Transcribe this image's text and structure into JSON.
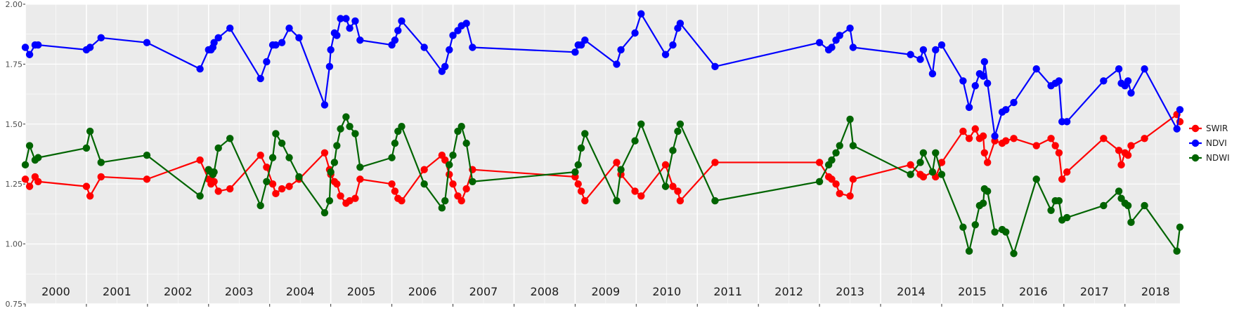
{
  "chart_data": {
    "type": "line",
    "title": "",
    "xlabel": "",
    "ylabel": "",
    "x_range": [
      2000.0,
      2018.9
    ],
    "ylim": [
      0.75,
      2.0
    ],
    "y_ticks": [
      "0.75",
      "1.00",
      "1.25",
      "1.50",
      "1.75",
      "2.00"
    ],
    "year_labels": [
      "2000",
      "2001",
      "2002",
      "2003",
      "2004",
      "2005",
      "2006",
      "2007",
      "2008",
      "2009",
      "2010",
      "2011",
      "2012",
      "2013",
      "2014",
      "2015",
      "2016",
      "2017",
      "2018"
    ],
    "legend": {
      "position": "right",
      "items": [
        {
          "name": "SWIR",
          "color": "#ff0000"
        },
        {
          "name": "NDVI",
          "color": "#0000ff"
        },
        {
          "name": "NDWI",
          "color": "#006400"
        }
      ]
    },
    "colors": {
      "panel": "#ebebeb",
      "grid": "#ffffff",
      "axis_text": "#4d4d4d"
    },
    "series": [
      {
        "name": "SWIR",
        "color": "#ff0000",
        "points": [
          [
            2000.0,
            1.27
          ],
          [
            2000.07,
            1.24
          ],
          [
            2000.16,
            1.28
          ],
          [
            2000.21,
            1.26
          ],
          [
            2001.0,
            1.24
          ],
          [
            2001.06,
            1.2
          ],
          [
            2001.24,
            1.28
          ],
          [
            2001.99,
            1.27
          ],
          [
            2002.86,
            1.35
          ],
          [
            2003.0,
            1.27
          ],
          [
            2003.04,
            1.25
          ],
          [
            2003.07,
            1.29
          ],
          [
            2003.09,
            1.26
          ],
          [
            2003.16,
            1.22
          ],
          [
            2003.35,
            1.23
          ],
          [
            2003.85,
            1.37
          ],
          [
            2003.95,
            1.32
          ],
          [
            2004.05,
            1.25
          ],
          [
            2004.1,
            1.21
          ],
          [
            2004.2,
            1.23
          ],
          [
            2004.32,
            1.24
          ],
          [
            2004.48,
            1.27
          ],
          [
            2004.9,
            1.38
          ],
          [
            2004.98,
            1.31
          ],
          [
            2005.0,
            1.29
          ],
          [
            2005.06,
            1.26
          ],
          [
            2005.1,
            1.25
          ],
          [
            2005.16,
            1.2
          ],
          [
            2005.25,
            1.17
          ],
          [
            2005.31,
            1.18
          ],
          [
            2005.4,
            1.19
          ],
          [
            2005.48,
            1.27
          ],
          [
            2006.0,
            1.25
          ],
          [
            2006.05,
            1.22
          ],
          [
            2006.1,
            1.19
          ],
          [
            2006.16,
            1.18
          ],
          [
            2006.53,
            1.31
          ],
          [
            2006.82,
            1.37
          ],
          [
            2006.87,
            1.35
          ],
          [
            2006.94,
            1.29
          ],
          [
            2007.0,
            1.25
          ],
          [
            2007.08,
            1.2
          ],
          [
            2007.14,
            1.18
          ],
          [
            2007.22,
            1.23
          ],
          [
            2007.32,
            1.31
          ],
          [
            2009.0,
            1.28
          ],
          [
            2009.05,
            1.25
          ],
          [
            2009.1,
            1.22
          ],
          [
            2009.16,
            1.18
          ],
          [
            2009.68,
            1.34
          ],
          [
            2009.75,
            1.29
          ],
          [
            2009.98,
            1.22
          ],
          [
            2010.08,
            1.2
          ],
          [
            2010.48,
            1.33
          ],
          [
            2010.6,
            1.24
          ],
          [
            2010.68,
            1.22
          ],
          [
            2010.72,
            1.18
          ],
          [
            2011.29,
            1.34
          ],
          [
            2013.0,
            1.34
          ],
          [
            2013.15,
            1.28
          ],
          [
            2013.2,
            1.27
          ],
          [
            2013.27,
            1.25
          ],
          [
            2013.33,
            1.21
          ],
          [
            2013.5,
            1.2
          ],
          [
            2013.55,
            1.27
          ],
          [
            2014.49,
            1.33
          ],
          [
            2014.65,
            1.29
          ],
          [
            2014.7,
            1.28
          ],
          [
            2014.85,
            1.3
          ],
          [
            2014.9,
            1.28
          ],
          [
            2015.0,
            1.34
          ],
          [
            2015.35,
            1.47
          ],
          [
            2015.45,
            1.44
          ],
          [
            2015.55,
            1.48
          ],
          [
            2015.62,
            1.44
          ],
          [
            2015.68,
            1.45
          ],
          [
            2015.7,
            1.38
          ],
          [
            2015.75,
            1.34
          ],
          [
            2015.87,
            1.43
          ],
          [
            2015.99,
            1.42
          ],
          [
            2016.05,
            1.43
          ],
          [
            2016.18,
            1.44
          ],
          [
            2016.55,
            1.41
          ],
          [
            2016.79,
            1.44
          ],
          [
            2016.86,
            1.41
          ],
          [
            2016.92,
            1.38
          ],
          [
            2016.97,
            1.27
          ],
          [
            2017.05,
            1.3
          ],
          [
            2017.65,
            1.44
          ],
          [
            2017.9,
            1.39
          ],
          [
            2017.94,
            1.33
          ],
          [
            2018.0,
            1.38
          ],
          [
            2018.05,
            1.37
          ],
          [
            2018.1,
            1.41
          ],
          [
            2018.32,
            1.44
          ],
          [
            2018.85,
            1.54
          ],
          [
            2018.9,
            1.51
          ]
        ]
      },
      {
        "name": "NDVI",
        "color": "#0000ff",
        "points": [
          [
            2000.0,
            1.82
          ],
          [
            2000.07,
            1.79
          ],
          [
            2000.16,
            1.83
          ],
          [
            2000.21,
            1.83
          ],
          [
            2001.0,
            1.81
          ],
          [
            2001.06,
            1.82
          ],
          [
            2001.24,
            1.86
          ],
          [
            2001.99,
            1.84
          ],
          [
            2002.86,
            1.73
          ],
          [
            2003.0,
            1.81
          ],
          [
            2003.04,
            1.81
          ],
          [
            2003.07,
            1.82
          ],
          [
            2003.09,
            1.84
          ],
          [
            2003.16,
            1.86
          ],
          [
            2003.35,
            1.9
          ],
          [
            2003.85,
            1.69
          ],
          [
            2003.95,
            1.76
          ],
          [
            2004.05,
            1.83
          ],
          [
            2004.1,
            1.83
          ],
          [
            2004.2,
            1.84
          ],
          [
            2004.32,
            1.9
          ],
          [
            2004.48,
            1.86
          ],
          [
            2004.9,
            1.58
          ],
          [
            2004.98,
            1.74
          ],
          [
            2005.0,
            1.81
          ],
          [
            2005.06,
            1.88
          ],
          [
            2005.1,
            1.87
          ],
          [
            2005.16,
            1.94
          ],
          [
            2005.25,
            1.94
          ],
          [
            2005.31,
            1.9
          ],
          [
            2005.4,
            1.93
          ],
          [
            2005.48,
            1.85
          ],
          [
            2006.0,
            1.83
          ],
          [
            2006.05,
            1.85
          ],
          [
            2006.1,
            1.89
          ],
          [
            2006.16,
            1.93
          ],
          [
            2006.53,
            1.82
          ],
          [
            2006.82,
            1.72
          ],
          [
            2006.87,
            1.74
          ],
          [
            2006.94,
            1.81
          ],
          [
            2007.0,
            1.87
          ],
          [
            2007.08,
            1.89
          ],
          [
            2007.14,
            1.91
          ],
          [
            2007.22,
            1.92
          ],
          [
            2007.32,
            1.82
          ],
          [
            2009.0,
            1.8
          ],
          [
            2009.05,
            1.83
          ],
          [
            2009.1,
            1.83
          ],
          [
            2009.16,
            1.85
          ],
          [
            2009.68,
            1.75
          ],
          [
            2009.75,
            1.81
          ],
          [
            2009.98,
            1.88
          ],
          [
            2010.08,
            1.96
          ],
          [
            2010.48,
            1.79
          ],
          [
            2010.6,
            1.83
          ],
          [
            2010.68,
            1.9
          ],
          [
            2010.72,
            1.92
          ],
          [
            2011.29,
            1.74
          ],
          [
            2013.0,
            1.84
          ],
          [
            2013.15,
            1.81
          ],
          [
            2013.2,
            1.82
          ],
          [
            2013.27,
            1.85
          ],
          [
            2013.33,
            1.87
          ],
          [
            2013.5,
            1.9
          ],
          [
            2013.55,
            1.82
          ],
          [
            2014.49,
            1.79
          ],
          [
            2014.65,
            1.77
          ],
          [
            2014.7,
            1.81
          ],
          [
            2014.85,
            1.71
          ],
          [
            2014.9,
            1.81
          ],
          [
            2015.0,
            1.83
          ],
          [
            2015.35,
            1.68
          ],
          [
            2015.45,
            1.57
          ],
          [
            2015.55,
            1.66
          ],
          [
            2015.62,
            1.71
          ],
          [
            2015.68,
            1.7
          ],
          [
            2015.7,
            1.76
          ],
          [
            2015.75,
            1.67
          ],
          [
            2015.87,
            1.45
          ],
          [
            2015.99,
            1.55
          ],
          [
            2016.05,
            1.56
          ],
          [
            2016.18,
            1.59
          ],
          [
            2016.55,
            1.73
          ],
          [
            2016.79,
            1.66
          ],
          [
            2016.86,
            1.67
          ],
          [
            2016.92,
            1.68
          ],
          [
            2016.97,
            1.51
          ],
          [
            2017.05,
            1.51
          ],
          [
            2017.65,
            1.68
          ],
          [
            2017.9,
            1.73
          ],
          [
            2017.94,
            1.67
          ],
          [
            2018.0,
            1.66
          ],
          [
            2018.05,
            1.68
          ],
          [
            2018.1,
            1.63
          ],
          [
            2018.32,
            1.73
          ],
          [
            2018.85,
            1.48
          ],
          [
            2018.9,
            1.56
          ]
        ]
      },
      {
        "name": "NDWI",
        "color": "#006400",
        "points": [
          [
            2000.0,
            1.33
          ],
          [
            2000.07,
            1.41
          ],
          [
            2000.16,
            1.35
          ],
          [
            2000.21,
            1.36
          ],
          [
            2001.0,
            1.4
          ],
          [
            2001.06,
            1.47
          ],
          [
            2001.24,
            1.34
          ],
          [
            2001.99,
            1.37
          ],
          [
            2002.86,
            1.2
          ],
          [
            2003.0,
            1.31
          ],
          [
            2003.04,
            1.3
          ],
          [
            2003.07,
            1.29
          ],
          [
            2003.09,
            1.3
          ],
          [
            2003.16,
            1.4
          ],
          [
            2003.35,
            1.44
          ],
          [
            2003.85,
            1.16
          ],
          [
            2003.95,
            1.26
          ],
          [
            2004.05,
            1.36
          ],
          [
            2004.1,
            1.46
          ],
          [
            2004.2,
            1.42
          ],
          [
            2004.32,
            1.36
          ],
          [
            2004.48,
            1.28
          ],
          [
            2004.9,
            1.13
          ],
          [
            2004.98,
            1.18
          ],
          [
            2005.0,
            1.3
          ],
          [
            2005.06,
            1.34
          ],
          [
            2005.1,
            1.41
          ],
          [
            2005.16,
            1.48
          ],
          [
            2005.25,
            1.53
          ],
          [
            2005.31,
            1.49
          ],
          [
            2005.4,
            1.46
          ],
          [
            2005.48,
            1.32
          ],
          [
            2006.0,
            1.36
          ],
          [
            2006.05,
            1.42
          ],
          [
            2006.1,
            1.47
          ],
          [
            2006.16,
            1.49
          ],
          [
            2006.53,
            1.25
          ],
          [
            2006.82,
            1.15
          ],
          [
            2006.87,
            1.18
          ],
          [
            2006.94,
            1.33
          ],
          [
            2007.0,
            1.37
          ],
          [
            2007.08,
            1.47
          ],
          [
            2007.14,
            1.49
          ],
          [
            2007.22,
            1.42
          ],
          [
            2007.32,
            1.26
          ],
          [
            2009.0,
            1.3
          ],
          [
            2009.05,
            1.33
          ],
          [
            2009.1,
            1.4
          ],
          [
            2009.16,
            1.46
          ],
          [
            2009.68,
            1.18
          ],
          [
            2009.75,
            1.31
          ],
          [
            2009.98,
            1.43
          ],
          [
            2010.08,
            1.5
          ],
          [
            2010.48,
            1.24
          ],
          [
            2010.6,
            1.39
          ],
          [
            2010.68,
            1.47
          ],
          [
            2010.72,
            1.5
          ],
          [
            2011.29,
            1.18
          ],
          [
            2013.0,
            1.26
          ],
          [
            2013.15,
            1.33
          ],
          [
            2013.2,
            1.35
          ],
          [
            2013.27,
            1.38
          ],
          [
            2013.33,
            1.41
          ],
          [
            2013.5,
            1.52
          ],
          [
            2013.55,
            1.41
          ],
          [
            2014.49,
            1.29
          ],
          [
            2014.65,
            1.34
          ],
          [
            2014.7,
            1.38
          ],
          [
            2014.85,
            1.3
          ],
          [
            2014.9,
            1.38
          ],
          [
            2015.0,
            1.29
          ],
          [
            2015.35,
            1.07
          ],
          [
            2015.45,
            0.97
          ],
          [
            2015.55,
            1.08
          ],
          [
            2015.62,
            1.16
          ],
          [
            2015.68,
            1.17
          ],
          [
            2015.7,
            1.23
          ],
          [
            2015.75,
            1.22
          ],
          [
            2015.87,
            1.05
          ],
          [
            2015.99,
            1.06
          ],
          [
            2016.05,
            1.05
          ],
          [
            2016.18,
            0.96
          ],
          [
            2016.55,
            1.27
          ],
          [
            2016.79,
            1.14
          ],
          [
            2016.86,
            1.18
          ],
          [
            2016.92,
            1.18
          ],
          [
            2016.97,
            1.1
          ],
          [
            2017.05,
            1.11
          ],
          [
            2017.65,
            1.16
          ],
          [
            2017.9,
            1.22
          ],
          [
            2017.94,
            1.19
          ],
          [
            2018.0,
            1.17
          ],
          [
            2018.05,
            1.16
          ],
          [
            2018.1,
            1.09
          ],
          [
            2018.32,
            1.16
          ],
          [
            2018.85,
            0.97
          ],
          [
            2018.9,
            1.07
          ]
        ]
      }
    ]
  }
}
